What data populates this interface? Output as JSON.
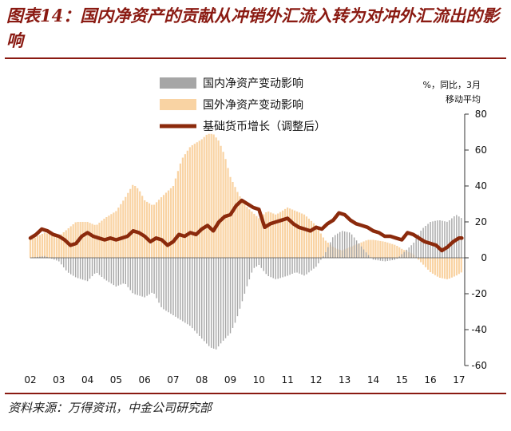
{
  "figure": {
    "title": "图表14：国内净资产的贡献从冲销外汇流入转为对冲外汇流出的影响",
    "source": "资料来源：万得资讯，中金公司研究部"
  },
  "chart_data": {
    "type": "bar",
    "title": "",
    "unit_label_line1": "%，同比，3月",
    "unit_label_line2": "移动平均",
    "y_axis_position": "right",
    "ylim": [
      -60,
      80
    ],
    "yticks": [
      -60,
      -40,
      -20,
      0,
      20,
      40,
      60,
      80
    ],
    "x_range": [
      2002.0,
      2017.2
    ],
    "xtick_labels": [
      "02",
      "03",
      "04",
      "05",
      "06",
      "07",
      "08",
      "09",
      "10",
      "11",
      "12",
      "13",
      "14",
      "15",
      "16",
      "17"
    ],
    "grid": false,
    "legend_position": "top-left",
    "colors": {
      "domestic": "#a6a6a6",
      "foreign": "#f9d3a3",
      "money": "#8b2a0c"
    },
    "series": [
      {
        "name": "国内净资产变动影响",
        "type": "bar",
        "points": [
          [
            2002.0,
            0
          ],
          [
            2002.5,
            1
          ],
          [
            2003.0,
            -2
          ],
          [
            2003.3,
            -8
          ],
          [
            2003.6,
            -11
          ],
          [
            2004.0,
            -13
          ],
          [
            2004.3,
            -8
          ],
          [
            2004.6,
            -12
          ],
          [
            2005.0,
            -16
          ],
          [
            2005.3,
            -14
          ],
          [
            2005.6,
            -20
          ],
          [
            2006.0,
            -22
          ],
          [
            2006.3,
            -19
          ],
          [
            2006.6,
            -28
          ],
          [
            2007.0,
            -32
          ],
          [
            2007.3,
            -35
          ],
          [
            2007.6,
            -38
          ],
          [
            2008.0,
            -45
          ],
          [
            2008.3,
            -50
          ],
          [
            2008.5,
            -51
          ],
          [
            2008.7,
            -47
          ],
          [
            2009.0,
            -42
          ],
          [
            2009.2,
            -35
          ],
          [
            2009.4,
            -25
          ],
          [
            2009.6,
            -15
          ],
          [
            2009.8,
            -6
          ],
          [
            2010.0,
            -4
          ],
          [
            2010.3,
            -10
          ],
          [
            2010.6,
            -12
          ],
          [
            2011.0,
            -10
          ],
          [
            2011.3,
            -8
          ],
          [
            2011.6,
            -10
          ],
          [
            2012.0,
            -5
          ],
          [
            2012.3,
            2
          ],
          [
            2012.6,
            12
          ],
          [
            2012.9,
            15
          ],
          [
            2013.2,
            14
          ],
          [
            2013.5,
            8
          ],
          [
            2013.8,
            2
          ],
          [
            2014.0,
            -1
          ],
          [
            2014.4,
            -2
          ],
          [
            2014.8,
            -1
          ],
          [
            2015.0,
            2
          ],
          [
            2015.4,
            8
          ],
          [
            2015.7,
            16
          ],
          [
            2016.0,
            20
          ],
          [
            2016.3,
            21
          ],
          [
            2016.6,
            20
          ],
          [
            2016.9,
            24
          ],
          [
            2017.1,
            22
          ]
        ]
      },
      {
        "name": "国外净资产变动影响",
        "type": "bar",
        "points": [
          [
            2002.0,
            10
          ],
          [
            2002.5,
            14
          ],
          [
            2003.0,
            12
          ],
          [
            2003.3,
            16
          ],
          [
            2003.6,
            20
          ],
          [
            2004.0,
            20
          ],
          [
            2004.3,
            18
          ],
          [
            2004.6,
            22
          ],
          [
            2005.0,
            26
          ],
          [
            2005.3,
            33
          ],
          [
            2005.6,
            41
          ],
          [
            2005.8,
            38
          ],
          [
            2006.0,
            32
          ],
          [
            2006.3,
            29
          ],
          [
            2006.6,
            34
          ],
          [
            2007.0,
            40
          ],
          [
            2007.3,
            55
          ],
          [
            2007.6,
            62
          ],
          [
            2008.0,
            66
          ],
          [
            2008.2,
            69
          ],
          [
            2008.4,
            69
          ],
          [
            2008.6,
            65
          ],
          [
            2008.8,
            57
          ],
          [
            2009.0,
            45
          ],
          [
            2009.3,
            35
          ],
          [
            2009.6,
            28
          ],
          [
            2010.0,
            22
          ],
          [
            2010.3,
            26
          ],
          [
            2010.6,
            24
          ],
          [
            2011.0,
            28
          ],
          [
            2011.3,
            26
          ],
          [
            2011.6,
            24
          ],
          [
            2012.0,
            18
          ],
          [
            2012.3,
            10
          ],
          [
            2012.6,
            6
          ],
          [
            2012.9,
            4
          ],
          [
            2013.2,
            6
          ],
          [
            2013.5,
            8
          ],
          [
            2013.8,
            10
          ],
          [
            2014.0,
            10
          ],
          [
            2014.4,
            9
          ],
          [
            2014.8,
            7
          ],
          [
            2015.0,
            5
          ],
          [
            2015.4,
            2
          ],
          [
            2015.7,
            -3
          ],
          [
            2016.0,
            -8
          ],
          [
            2016.3,
            -11
          ],
          [
            2016.6,
            -12
          ],
          [
            2016.9,
            -10
          ],
          [
            2017.1,
            -8
          ]
        ]
      },
      {
        "name": "基础货币增长（调整后）",
        "type": "line",
        "points": [
          [
            2002.0,
            11
          ],
          [
            2002.2,
            13
          ],
          [
            2002.4,
            16
          ],
          [
            2002.6,
            15
          ],
          [
            2002.8,
            13
          ],
          [
            2003.0,
            12
          ],
          [
            2003.2,
            10
          ],
          [
            2003.4,
            7
          ],
          [
            2003.6,
            8
          ],
          [
            2003.8,
            12
          ],
          [
            2004.0,
            14
          ],
          [
            2004.2,
            12
          ],
          [
            2004.4,
            11
          ],
          [
            2004.6,
            10
          ],
          [
            2004.8,
            11
          ],
          [
            2005.0,
            10
          ],
          [
            2005.2,
            11
          ],
          [
            2005.4,
            12
          ],
          [
            2005.6,
            15
          ],
          [
            2005.8,
            14
          ],
          [
            2006.0,
            12
          ],
          [
            2006.2,
            9
          ],
          [
            2006.4,
            11
          ],
          [
            2006.6,
            10
          ],
          [
            2006.8,
            7
          ],
          [
            2007.0,
            9
          ],
          [
            2007.2,
            13
          ],
          [
            2007.4,
            12
          ],
          [
            2007.6,
            14
          ],
          [
            2007.8,
            13
          ],
          [
            2008.0,
            16
          ],
          [
            2008.2,
            18
          ],
          [
            2008.4,
            15
          ],
          [
            2008.6,
            20
          ],
          [
            2008.8,
            23
          ],
          [
            2009.0,
            24
          ],
          [
            2009.2,
            29
          ],
          [
            2009.4,
            32
          ],
          [
            2009.6,
            30
          ],
          [
            2009.8,
            28
          ],
          [
            2010.0,
            27
          ],
          [
            2010.2,
            17
          ],
          [
            2010.4,
            19
          ],
          [
            2010.6,
            20
          ],
          [
            2010.8,
            21
          ],
          [
            2011.0,
            22
          ],
          [
            2011.2,
            19
          ],
          [
            2011.4,
            17
          ],
          [
            2011.6,
            16
          ],
          [
            2011.8,
            15
          ],
          [
            2012.0,
            17
          ],
          [
            2012.2,
            16
          ],
          [
            2012.4,
            19
          ],
          [
            2012.6,
            21
          ],
          [
            2012.8,
            25
          ],
          [
            2013.0,
            24
          ],
          [
            2013.2,
            21
          ],
          [
            2013.4,
            19
          ],
          [
            2013.6,
            18
          ],
          [
            2013.8,
            17
          ],
          [
            2014.0,
            15
          ],
          [
            2014.2,
            14
          ],
          [
            2014.4,
            12
          ],
          [
            2014.6,
            12
          ],
          [
            2014.8,
            11
          ],
          [
            2015.0,
            10
          ],
          [
            2015.2,
            14
          ],
          [
            2015.4,
            13
          ],
          [
            2015.6,
            11
          ],
          [
            2015.8,
            9
          ],
          [
            2016.0,
            8
          ],
          [
            2016.2,
            7
          ],
          [
            2016.4,
            4
          ],
          [
            2016.6,
            6
          ],
          [
            2016.8,
            9
          ],
          [
            2017.0,
            11
          ],
          [
            2017.1,
            11
          ]
        ]
      }
    ]
  }
}
